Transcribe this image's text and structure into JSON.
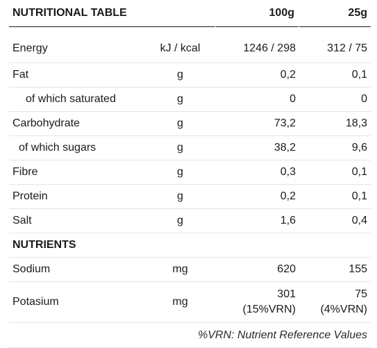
{
  "table": {
    "header": {
      "title": "NUTRITIONAL TABLE",
      "col_100g": "100g",
      "col_25g": "25g"
    },
    "rows": [
      {
        "name": "Energy",
        "unit": "kJ / kcal",
        "per100": "1246 / 298",
        "per25": "312 / 75"
      },
      {
        "name": "Fat",
        "unit": "g",
        "per100": "0,2",
        "per25": "0,1"
      },
      {
        "name": "of which saturated",
        "unit": "g",
        "per100": "0",
        "per25": "0"
      },
      {
        "name": "Carbohydrate",
        "unit": "g",
        "per100": "73,2",
        "per25": "18,3"
      },
      {
        "name": "of which sugars",
        "unit": "g",
        "per100": "38,2",
        "per25": "9,6"
      },
      {
        "name": "Fibre",
        "unit": "g",
        "per100": "0,3",
        "per25": "0,1"
      },
      {
        "name": "Protein",
        "unit": "g",
        "per100": "0,2",
        "per25": "0,1"
      },
      {
        "name": "Salt",
        "unit": "g",
        "per100": "1,6",
        "per25": "0,4"
      }
    ],
    "nutrients_heading": "NUTRIENTS",
    "nutrients": [
      {
        "name": "Sodium",
        "unit": "mg",
        "per100": "620",
        "per25": "155"
      },
      {
        "name": "Potasium",
        "unit": "mg",
        "per100": "301",
        "per100_vrn": "(15%VRN)",
        "per25": "75",
        "per25_vrn": "(4%VRN)"
      }
    ],
    "footnote": "%VRN: Nutrient Reference Values"
  }
}
